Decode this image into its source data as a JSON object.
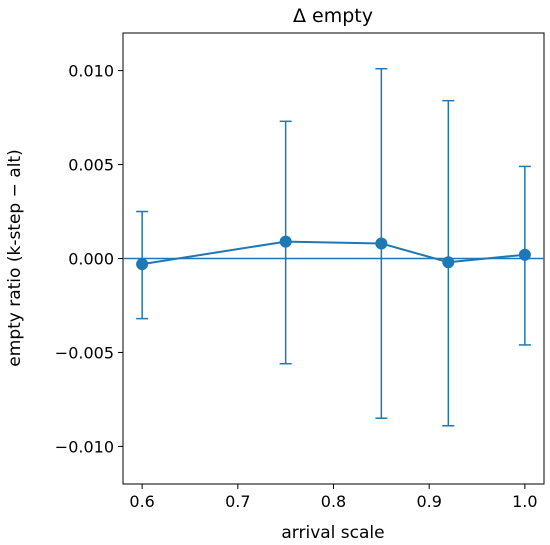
{
  "chart_data": {
    "type": "line",
    "title": "Δ empty",
    "xlabel": "arrival scale",
    "ylabel": "empty ratio  (k-step − alt)",
    "xlim": [
      0.58,
      1.02
    ],
    "ylim": [
      -0.012,
      0.012
    ],
    "x_ticks": [
      0.6,
      0.7,
      0.8,
      0.9,
      1.0
    ],
    "x_tick_labels": [
      "0.6",
      "0.7",
      "0.8",
      "0.9",
      "1.0"
    ],
    "y_ticks": [
      0.01,
      0.005,
      0.0,
      -0.005,
      -0.01
    ],
    "y_tick_labels": [
      "0.010",
      "0.005",
      "0.000",
      "−0.005",
      "−0.010"
    ],
    "reference_line_y": 0.0,
    "grid": false,
    "color": "#1f77b4",
    "series": [
      {
        "points": [
          {
            "x": 0.6,
            "y": -0.0003,
            "err_low": -0.0032,
            "err_high": 0.0025
          },
          {
            "x": 0.75,
            "y": 0.0009,
            "err_low": -0.0056,
            "err_high": 0.0073
          },
          {
            "x": 0.85,
            "y": 0.0008,
            "err_low": -0.0085,
            "err_high": 0.0101
          },
          {
            "x": 0.92,
            "y": -0.0002,
            "err_low": -0.0089,
            "err_high": 0.0084
          },
          {
            "x": 1.0,
            "y": 0.0002,
            "err_low": -0.0046,
            "err_high": 0.0049
          }
        ]
      }
    ]
  }
}
